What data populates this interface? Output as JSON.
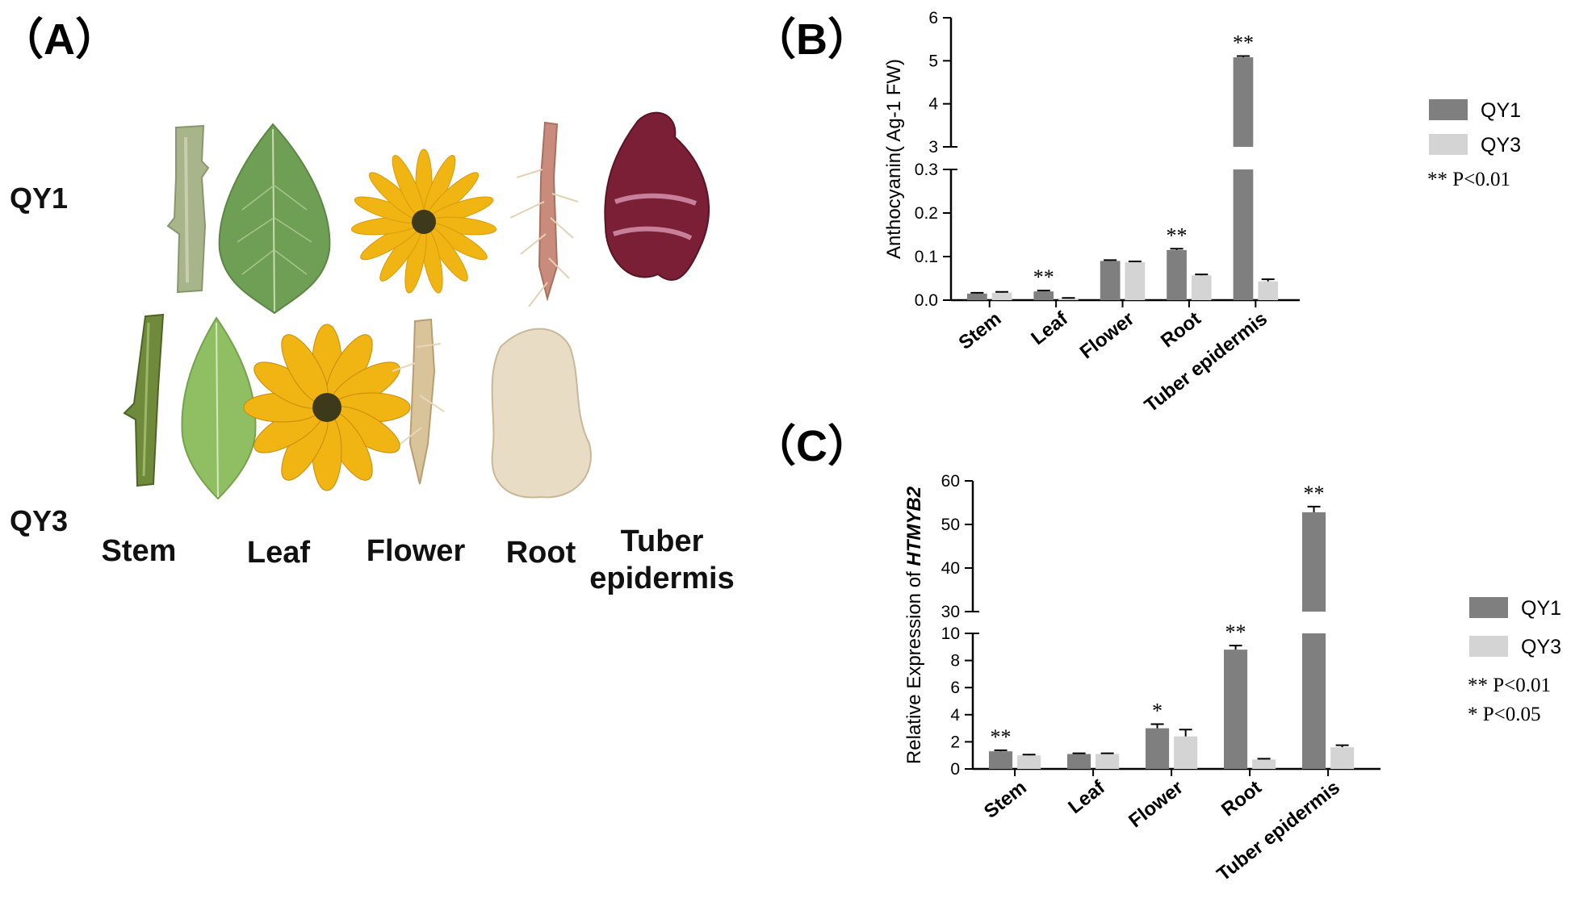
{
  "panels": {
    "A": "（A）",
    "B": "（B）",
    "C": "（C）"
  },
  "panel_a": {
    "rows": [
      "QY1",
      "QY3"
    ],
    "tissues": [
      "Stem",
      "Leaf",
      "Flower",
      "Root",
      "Tuber",
      "epidermis"
    ],
    "colors": {
      "stem_qy1": "#a8b48a",
      "stem_qy3": "#6f8a3a",
      "leaf_qy1": "#6e9f54",
      "leaf_qy3": "#8fbf62",
      "petal": "#f0b413",
      "petal_dark": "#d99a0a",
      "disc": "#3c3a1a",
      "root_qy1": "#c98b7c",
      "root_qy3": "#d9c39a",
      "tuber_qy1": "#7a1f36",
      "tuber_qy3": "#e8dcc4"
    }
  },
  "chart_data": [
    {
      "type": "bar",
      "panel": "B",
      "ylabel": "Anthocyanin(  Ag-1 FW)",
      "categories": [
        "Stem",
        "Leaf",
        "Flower",
        "Root",
        "Tuber epidermis"
      ],
      "series": [
        {
          "name": "QY1",
          "color": "#7f7f7f",
          "values": [
            0.015,
            0.02,
            0.09,
            0.115,
            5.08
          ],
          "errors": [
            0.002,
            0.002,
            0.002,
            0.003,
            0.03
          ]
        },
        {
          "name": "QY3",
          "color": "#d4d4d4",
          "values": [
            0.017,
            0.004,
            0.087,
            0.057,
            0.043
          ],
          "errors": [
            0.002,
            0.001,
            0.002,
            0.002,
            0.005
          ]
        }
      ],
      "y_axis_broken": true,
      "ylim_lower": [
        0,
        0.3
      ],
      "ylim_upper": [
        3,
        6
      ],
      "yticks_lower": [
        "0.0",
        "0.1",
        "0.2",
        "0.3"
      ],
      "yticks_upper": [
        "3",
        "4",
        "5",
        "6"
      ],
      "significance": [
        "",
        "**",
        "",
        "**",
        "**"
      ],
      "legend": {
        "qy1": "QY1",
        "qy3": "QY3",
        "sig1": "** P<0.01"
      }
    },
    {
      "type": "bar",
      "panel": "C",
      "ylabel_prefix": "Relative Expression of ",
      "ylabel_gene": "HTMYB2",
      "categories": [
        "Stem",
        "Leaf",
        "Flower",
        "Root",
        "Tuber epidermis"
      ],
      "series": [
        {
          "name": "QY1",
          "color": "#7f7f7f",
          "values": [
            1.3,
            1.1,
            3.0,
            8.8,
            52.8
          ],
          "errors": [
            0.08,
            0.05,
            0.3,
            0.3,
            1.3
          ]
        },
        {
          "name": "QY3",
          "color": "#d4d4d4",
          "values": [
            1.0,
            1.1,
            2.4,
            0.7,
            1.6
          ],
          "errors": [
            0.06,
            0.05,
            0.5,
            0.05,
            0.15
          ]
        }
      ],
      "y_axis_broken": true,
      "ylim_lower": [
        0,
        10
      ],
      "ylim_upper": [
        30,
        60
      ],
      "yticks_lower": [
        "0",
        "2",
        "4",
        "6",
        "8",
        "10"
      ],
      "yticks_upper": [
        "30",
        "40",
        "50",
        "60"
      ],
      "significance": [
        "**",
        "",
        "*",
        "**",
        "**"
      ],
      "legend": {
        "qy1": "QY1",
        "qy3": "QY3",
        "sig1": "** P<0.01",
        "sig2": "*   P<0.05"
      }
    }
  ]
}
